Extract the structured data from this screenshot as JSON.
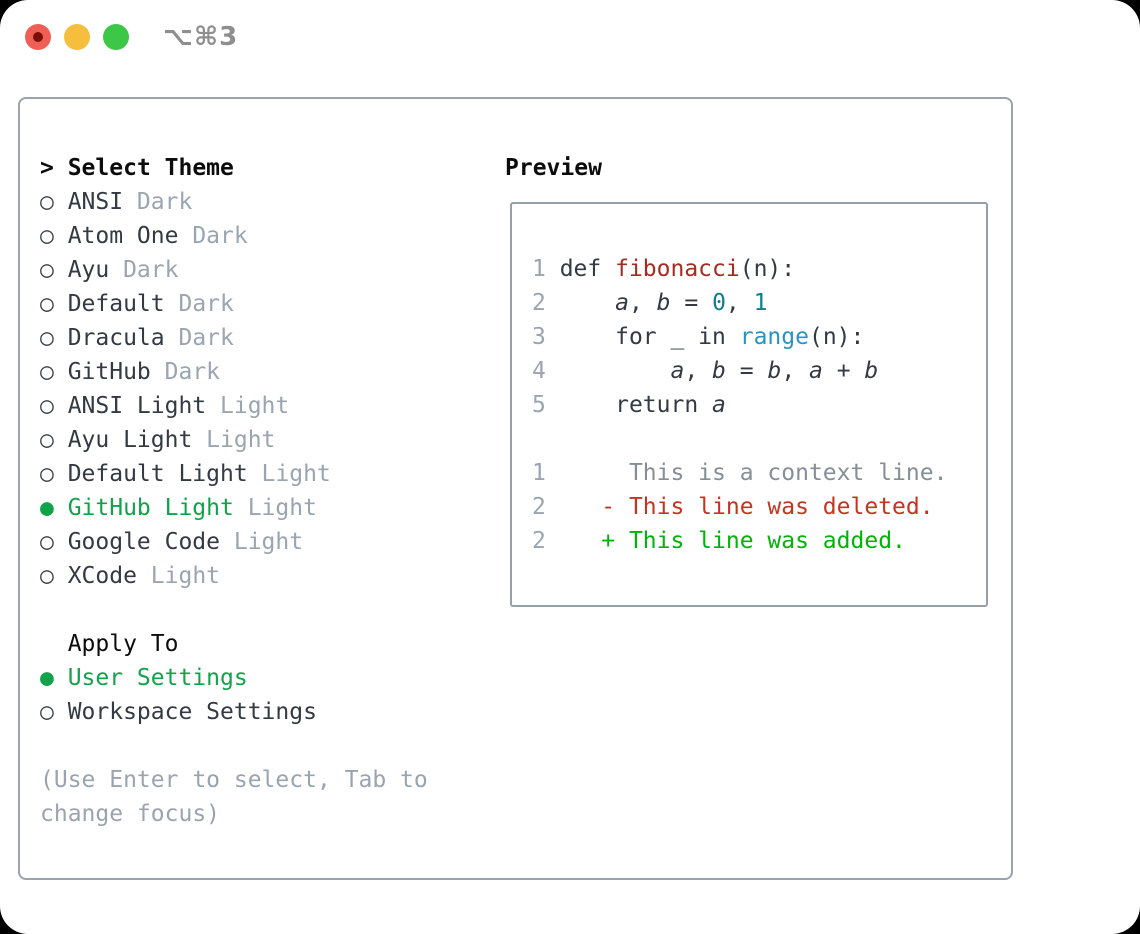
{
  "window": {
    "title": "⌥⌘3",
    "traffic_lights": [
      {
        "name": "close-button",
        "color": "#f05f55",
        "has_dot": true
      },
      {
        "name": "minimize-button",
        "color": "#f5be3c",
        "has_dot": false
      },
      {
        "name": "zoom-button",
        "color": "#3cc746",
        "has_dot": false
      }
    ]
  },
  "theme_picker": {
    "header_prefix": "> ",
    "header": "Select Theme",
    "marker_unselected": "○",
    "marker_selected": "●",
    "items": [
      {
        "name": "ANSI",
        "variant": "Dark",
        "selected": false
      },
      {
        "name": "Atom One",
        "variant": "Dark",
        "selected": false
      },
      {
        "name": "Ayu",
        "variant": "Dark",
        "selected": false
      },
      {
        "name": "Default",
        "variant": "Dark",
        "selected": false
      },
      {
        "name": "Dracula",
        "variant": "Dark",
        "selected": false
      },
      {
        "name": "GitHub",
        "variant": "Dark",
        "selected": false
      },
      {
        "name": "ANSI Light",
        "variant": "Light",
        "selected": false
      },
      {
        "name": "Ayu Light",
        "variant": "Light",
        "selected": false
      },
      {
        "name": "Default Light",
        "variant": "Light",
        "selected": false
      },
      {
        "name": "GitHub Light",
        "variant": "Light",
        "selected": true
      },
      {
        "name": "Google Code",
        "variant": "Light",
        "selected": false
      },
      {
        "name": "XCode",
        "variant": "Light",
        "selected": false
      }
    ],
    "apply_to": {
      "header": "Apply To",
      "options": [
        {
          "label": "User Settings",
          "selected": true
        },
        {
          "label": "Workspace Settings",
          "selected": false
        }
      ]
    },
    "hint": "(Use Enter to select, Tab to change focus)"
  },
  "preview": {
    "header": "Preview",
    "lines": [
      {
        "segments": [
          {
            "t": "1 ",
            "s": "ln"
          },
          {
            "t": "def ",
            "s": "plain"
          },
          {
            "t": "fibonacci",
            "s": "fn"
          },
          {
            "t": "(n):",
            "s": "plain"
          }
        ]
      },
      {
        "segments": [
          {
            "t": "2 ",
            "s": "ln"
          },
          {
            "t": "    ",
            "s": "plain"
          },
          {
            "t": "a",
            "s": "var"
          },
          {
            "t": ", ",
            "s": "plain"
          },
          {
            "t": "b",
            "s": "var"
          },
          {
            "t": " = ",
            "s": "plain"
          },
          {
            "t": "0",
            "s": "num"
          },
          {
            "t": ", ",
            "s": "plain"
          },
          {
            "t": "1",
            "s": "num"
          }
        ]
      },
      {
        "segments": [
          {
            "t": "3 ",
            "s": "ln"
          },
          {
            "t": "    for _ in ",
            "s": "plain"
          },
          {
            "t": "range",
            "s": "blue"
          },
          {
            "t": "(n):",
            "s": "plain"
          }
        ]
      },
      {
        "segments": [
          {
            "t": "4 ",
            "s": "ln"
          },
          {
            "t": "        ",
            "s": "plain"
          },
          {
            "t": "a",
            "s": "var"
          },
          {
            "t": ", ",
            "s": "plain"
          },
          {
            "t": "b",
            "s": "var"
          },
          {
            "t": " = ",
            "s": "plain"
          },
          {
            "t": "b",
            "s": "var"
          },
          {
            "t": ", ",
            "s": "plain"
          },
          {
            "t": "a",
            "s": "var"
          },
          {
            "t": " + ",
            "s": "plain"
          },
          {
            "t": "b",
            "s": "var"
          }
        ]
      },
      {
        "segments": [
          {
            "t": "5 ",
            "s": "ln"
          },
          {
            "t": "    return ",
            "s": "plain"
          },
          {
            "t": "a",
            "s": "var"
          }
        ]
      },
      {
        "segments": []
      },
      {
        "segments": [
          {
            "t": "1 ",
            "s": "ln"
          },
          {
            "t": "     This is a context line.",
            "s": "ctx"
          }
        ]
      },
      {
        "segments": [
          {
            "t": "2 ",
            "s": "ln"
          },
          {
            "t": "   - This line was deleted.",
            "s": "del"
          }
        ]
      },
      {
        "segments": [
          {
            "t": "2 ",
            "s": "ln"
          },
          {
            "t": "   + This line was added.",
            "s": "add"
          }
        ]
      }
    ]
  },
  "colors": {
    "accent_green": "#11a34a",
    "syntax_function_red": "#a62c21",
    "syntax_number_teal": "#0f7e8b",
    "syntax_builtin_blue": "#2a93c6",
    "diff_deleted_red": "#c53420",
    "diff_added_green": "#00b40a",
    "diff_context_gray": "#868e97",
    "line_number_gray": "#9aa5b1",
    "muted_gray": "#9aa4b0",
    "text_dark": "#333a43",
    "traffic_red": "#f05f55",
    "traffic_yellow": "#f5be3c",
    "traffic_green": "#3cc746"
  }
}
